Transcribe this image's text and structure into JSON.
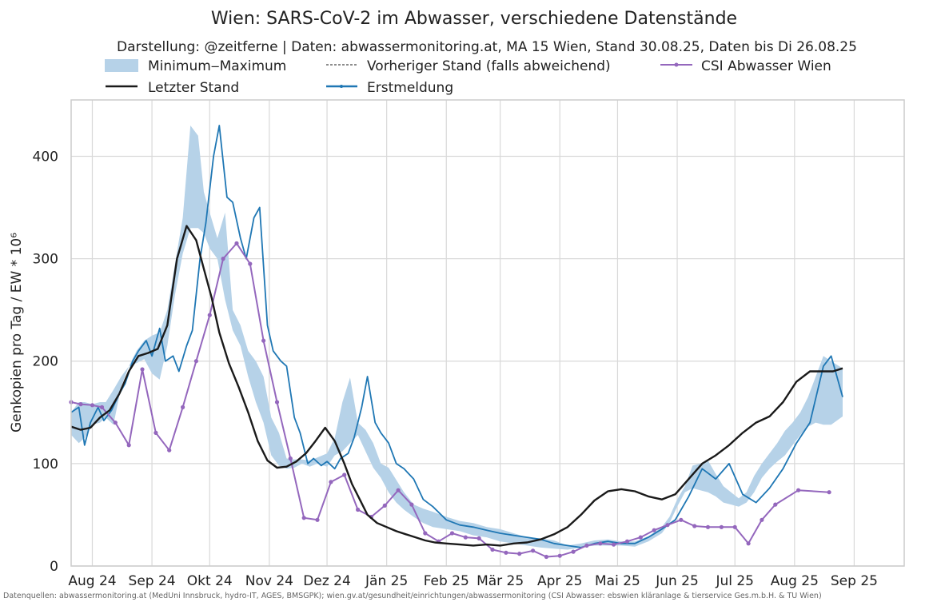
{
  "chart_data": {
    "type": "line",
    "title": "Wien: SARS-CoV-2 im Abwasser, verschiedene Datenstände",
    "subtitle": "Darstellung: @zeitferne | Daten: abwassermonitoring.at, MA 15 Wien, Stand 30.08.25, Daten bis Di 26.08.25",
    "xlabel": "",
    "ylabel": "Genkopien pro Tag / EW * 10⁶",
    "source": "Datenquellen: abwassermonitoring.at (MedUni Innsbruck, hydro-IT, AGES, BMSGPK); wien.gv.at/gesundheit/einrichtungen/abwassermonitoring (CSI Abwasser: ebswien kläranlage & tierservice Ges.m.b.H. & TU Wien)",
    "xlim": [
      "2024-07-21",
      "2025-09-27"
    ],
    "ylim": [
      0,
      455
    ],
    "grid": true,
    "legend_placement": "top",
    "x_ticks": [
      {
        "label": "Aug 24",
        "date": "2024-08-01"
      },
      {
        "label": "Sep 24",
        "date": "2024-09-01"
      },
      {
        "label": "Okt 24",
        "date": "2024-10-01"
      },
      {
        "label": "Nov 24",
        "date": "2024-11-01"
      },
      {
        "label": "Dez 24",
        "date": "2024-12-01"
      },
      {
        "label": "Jän 25",
        "date": "2025-01-01"
      },
      {
        "label": "Feb 25",
        "date": "2025-02-01"
      },
      {
        "label": "Mär 25",
        "date": "2025-03-01"
      },
      {
        "label": "Apr 25",
        "date": "2025-04-01"
      },
      {
        "label": "Mai 25",
        "date": "2025-05-01"
      },
      {
        "label": "Jun 25",
        "date": "2025-06-01"
      },
      {
        "label": "Jul 25",
        "date": "2025-07-01"
      },
      {
        "label": "Aug 25",
        "date": "2025-08-01"
      },
      {
        "label": "Sep 25",
        "date": "2025-09-01"
      }
    ],
    "y_ticks": [
      0,
      100,
      200,
      300,
      400
    ],
    "legend": [
      {
        "key": "minmax",
        "label": "Minimum‒Maximum"
      },
      {
        "key": "vorheriger",
        "label": "Vorheriger Stand (falls abweichend)"
      },
      {
        "key": "csi",
        "label": "CSI Abwasser Wien"
      },
      {
        "key": "letzter",
        "label": "Letzter Stand"
      },
      {
        "key": "erstmeldung",
        "label": "Erstmeldung"
      }
    ],
    "colors": {
      "band": "#b6d2e8",
      "letzter": "#1a1a1a",
      "erstmeldung": "#1f77b4",
      "csi": "#9467bd",
      "grid": "#d9d9d9",
      "frame": "#cccccc"
    },
    "series": [
      {
        "name": "Minimum‒Maximum",
        "key": "minmax",
        "style": "band",
        "x": [
          "2024-07-21",
          "2024-07-25",
          "2024-07-28",
          "2024-08-01",
          "2024-08-05",
          "2024-08-08",
          "2024-08-12",
          "2024-08-16",
          "2024-08-20",
          "2024-08-24",
          "2024-08-28",
          "2024-09-01",
          "2024-09-05",
          "2024-09-09",
          "2024-09-13",
          "2024-09-17",
          "2024-09-21",
          "2024-09-25",
          "2024-09-28",
          "2024-10-01",
          "2024-10-05",
          "2024-10-09",
          "2024-10-13",
          "2024-10-17",
          "2024-10-21",
          "2024-10-25",
          "2024-10-29",
          "2024-11-02",
          "2024-11-06",
          "2024-11-10",
          "2024-11-14",
          "2024-11-18",
          "2024-11-22",
          "2024-11-26",
          "2024-12-01",
          "2024-12-05",
          "2024-12-09",
          "2024-12-13",
          "2024-12-17",
          "2024-12-21",
          "2024-12-25",
          "2024-12-29",
          "2025-01-02",
          "2025-01-06",
          "2025-01-10",
          "2025-01-15",
          "2025-01-20",
          "2025-01-25",
          "2025-02-01",
          "2025-02-08",
          "2025-02-15",
          "2025-02-22",
          "2025-03-01",
          "2025-03-08",
          "2025-03-15",
          "2025-03-22",
          "2025-03-29",
          "2025-04-05",
          "2025-04-12",
          "2025-04-19",
          "2025-04-26",
          "2025-05-03",
          "2025-05-10",
          "2025-05-17",
          "2025-05-24",
          "2025-05-28",
          "2025-06-01",
          "2025-06-05",
          "2025-06-09",
          "2025-06-13",
          "2025-06-17",
          "2025-06-21",
          "2025-06-25",
          "2025-06-29",
          "2025-07-03",
          "2025-07-07",
          "2025-07-11",
          "2025-07-15",
          "2025-07-19",
          "2025-07-23",
          "2025-07-27",
          "2025-07-31",
          "2025-08-04",
          "2025-08-08",
          "2025-08-12",
          "2025-08-16",
          "2025-08-20",
          "2025-08-26"
        ],
        "low": [
          128,
          120,
          125,
          138,
          140,
          145,
          138,
          175,
          195,
          198,
          202,
          188,
          182,
          215,
          265,
          305,
          330,
          330,
          325,
          310,
          300,
          260,
          230,
          215,
          185,
          160,
          140,
          108,
          98,
          95,
          96,
          100,
          97,
          100,
          97,
          108,
          112,
          120,
          128,
          112,
          96,
          86,
          72,
          62,
          55,
          48,
          42,
          38,
          36,
          34,
          30,
          28,
          24,
          22,
          20,
          18,
          17,
          16,
          18,
          20,
          20,
          20,
          19,
          24,
          32,
          42,
          58,
          72,
          76,
          74,
          72,
          68,
          62,
          60,
          58,
          62,
          72,
          86,
          95,
          102,
          108,
          118,
          128,
          136,
          140,
          138,
          138,
          146
        ],
        "high": [
          150,
          160,
          160,
          158,
          160,
          160,
          172,
          185,
          195,
          210,
          220,
          225,
          228,
          250,
          295,
          340,
          430,
          420,
          365,
          345,
          320,
          345,
          250,
          235,
          210,
          200,
          185,
          145,
          130,
          105,
          104,
          104,
          103,
          106,
          110,
          125,
          160,
          184,
          140,
          133,
          120,
          100,
          96,
          84,
          72,
          60,
          56,
          53,
          48,
          44,
          42,
          38,
          36,
          32,
          28,
          27,
          25,
          20,
          22,
          25,
          26,
          24,
          24,
          29,
          38,
          48,
          65,
          78,
          98,
          100,
          103,
          90,
          78,
          72,
          66,
          72,
          88,
          100,
          110,
          120,
          132,
          140,
          150,
          165,
          185,
          205,
          200,
          193
        ]
      },
      {
        "name": "Letzter Stand",
        "key": "letzter",
        "style": "line",
        "x": [
          "2024-07-21",
          "2024-07-26",
          "2024-07-31",
          "2024-08-05",
          "2024-08-10",
          "2024-08-15",
          "2024-08-20",
          "2024-08-25",
          "2024-08-30",
          "2024-09-04",
          "2024-09-09",
          "2024-09-14",
          "2024-09-19",
          "2024-09-24",
          "2024-09-28",
          "2024-10-02",
          "2024-10-06",
          "2024-10-11",
          "2024-10-16",
          "2024-10-21",
          "2024-10-26",
          "2024-10-31",
          "2024-11-05",
          "2024-11-10",
          "2024-11-15",
          "2024-11-20",
          "2024-11-25",
          "2024-11-30",
          "2024-12-05",
          "2024-12-10",
          "2024-12-14",
          "2024-12-18",
          "2024-12-22",
          "2024-12-27",
          "2025-01-01",
          "2025-01-06",
          "2025-01-11",
          "2025-01-16",
          "2025-01-21",
          "2025-01-26",
          "2025-02-01",
          "2025-02-08",
          "2025-02-15",
          "2025-02-22",
          "2025-03-01",
          "2025-03-08",
          "2025-03-15",
          "2025-03-22",
          "2025-03-29",
          "2025-04-05",
          "2025-04-12",
          "2025-04-19",
          "2025-04-26",
          "2025-05-03",
          "2025-05-10",
          "2025-05-17",
          "2025-05-24",
          "2025-05-31",
          "2025-06-07",
          "2025-06-14",
          "2025-06-21",
          "2025-06-28",
          "2025-07-05",
          "2025-07-12",
          "2025-07-19",
          "2025-07-26",
          "2025-08-02",
          "2025-08-09",
          "2025-08-16",
          "2025-08-21",
          "2025-08-26"
        ],
        "y": [
          136,
          133,
          135,
          145,
          152,
          168,
          190,
          205,
          208,
          212,
          235,
          300,
          332,
          318,
          290,
          262,
          228,
          198,
          175,
          150,
          122,
          103,
          96,
          97,
          102,
          110,
          122,
          135,
          122,
          100,
          80,
          65,
          50,
          42,
          38,
          34,
          31,
          28,
          25,
          23,
          22,
          21,
          20,
          21,
          20,
          22,
          23,
          26,
          31,
          38,
          50,
          64,
          73,
          75,
          73,
          68,
          65,
          70,
          85,
          100,
          108,
          118,
          130,
          140,
          146,
          160,
          180,
          190,
          190,
          190,
          193
        ]
      },
      {
        "name": "Erstmeldung",
        "key": "erstmeldung",
        "style": "line",
        "x": [
          "2024-07-21",
          "2024-07-25",
          "2024-07-28",
          "2024-07-31",
          "2024-08-04",
          "2024-08-07",
          "2024-08-11",
          "2024-08-15",
          "2024-08-18",
          "2024-08-22",
          "2024-08-25",
          "2024-08-29",
          "2024-09-01",
          "2024-09-05",
          "2024-09-08",
          "2024-09-12",
          "2024-09-15",
          "2024-09-19",
          "2024-09-22",
          "2024-09-26",
          "2024-09-29",
          "2024-10-03",
          "2024-10-06",
          "2024-10-10",
          "2024-10-13",
          "2024-10-17",
          "2024-10-20",
          "2024-10-24",
          "2024-10-27",
          "2024-10-31",
          "2024-11-03",
          "2024-11-07",
          "2024-11-10",
          "2024-11-14",
          "2024-11-17",
          "2024-11-21",
          "2024-11-24",
          "2024-11-28",
          "2024-12-01",
          "2024-12-05",
          "2024-12-08",
          "2024-12-12",
          "2024-12-15",
          "2024-12-19",
          "2024-12-22",
          "2024-12-26",
          "2024-12-29",
          "2025-01-02",
          "2025-01-06",
          "2025-01-10",
          "2025-01-15",
          "2025-01-20",
          "2025-01-25",
          "2025-02-01",
          "2025-02-08",
          "2025-02-15",
          "2025-02-22",
          "2025-03-01",
          "2025-03-08",
          "2025-03-15",
          "2025-03-22",
          "2025-03-29",
          "2025-04-05",
          "2025-04-12",
          "2025-04-19",
          "2025-04-26",
          "2025-05-03",
          "2025-05-10",
          "2025-05-17",
          "2025-05-24",
          "2025-05-31",
          "2025-06-07",
          "2025-06-14",
          "2025-06-21",
          "2025-06-28",
          "2025-07-05",
          "2025-07-12",
          "2025-07-19",
          "2025-07-26",
          "2025-08-02",
          "2025-08-09",
          "2025-08-16",
          "2025-08-20",
          "2025-08-26"
        ],
        "y": [
          150,
          155,
          118,
          140,
          155,
          142,
          152,
          168,
          178,
          200,
          210,
          220,
          205,
          232,
          200,
          205,
          190,
          215,
          230,
          300,
          335,
          400,
          430,
          360,
          355,
          320,
          300,
          340,
          350,
          235,
          210,
          200,
          195,
          145,
          130,
          100,
          105,
          98,
          102,
          95,
          105,
          110,
          125,
          155,
          185,
          140,
          130,
          120,
          100,
          95,
          85,
          65,
          58,
          45,
          40,
          38,
          35,
          32,
          30,
          28,
          26,
          22,
          20,
          18,
          22,
          24,
          22,
          22,
          28,
          36,
          45,
          68,
          95,
          85,
          100,
          70,
          62,
          76,
          95,
          120,
          140,
          195,
          205,
          165
        ]
      },
      {
        "name": "CSI Abwasser Wien",
        "key": "csi",
        "style": "line-markers",
        "x": [
          "2024-07-21",
          "2024-07-26",
          "2024-08-01",
          "2024-08-06",
          "2024-08-13",
          "2024-08-20",
          "2024-08-27",
          "2024-09-03",
          "2024-09-10",
          "2024-09-17",
          "2024-09-24",
          "2024-10-01",
          "2024-10-08",
          "2024-10-15",
          "2024-10-22",
          "2024-10-29",
          "2024-11-05",
          "2024-11-12",
          "2024-11-19",
          "2024-11-26",
          "2024-12-03",
          "2024-12-10",
          "2024-12-17",
          "2024-12-24",
          "2024-12-31",
          "2025-01-07",
          "2025-01-14",
          "2025-01-21",
          "2025-01-28",
          "2025-02-04",
          "2025-02-11",
          "2025-02-18",
          "2025-02-25",
          "2025-03-04",
          "2025-03-11",
          "2025-03-18",
          "2025-03-25",
          "2025-04-01",
          "2025-04-08",
          "2025-04-15",
          "2025-04-22",
          "2025-04-29",
          "2025-05-06",
          "2025-05-13",
          "2025-05-20",
          "2025-05-27",
          "2025-06-03",
          "2025-06-10",
          "2025-06-17",
          "2025-06-24",
          "2025-07-01",
          "2025-07-08",
          "2025-07-15",
          "2025-07-22",
          "2025-08-03",
          "2025-08-19"
        ],
        "y": [
          160,
          158,
          157,
          155,
          140,
          118,
          192,
          130,
          113,
          155,
          200,
          245,
          300,
          315,
          295,
          220,
          160,
          105,
          47,
          45,
          82,
          89,
          55,
          48,
          59,
          74,
          60,
          32,
          24,
          32,
          28,
          27,
          16,
          13,
          12,
          15,
          9,
          10,
          14,
          20,
          22,
          21,
          24,
          28,
          35,
          40,
          45,
          39,
          38,
          38,
          38,
          22,
          45,
          60,
          74,
          72
        ]
      }
    ]
  }
}
